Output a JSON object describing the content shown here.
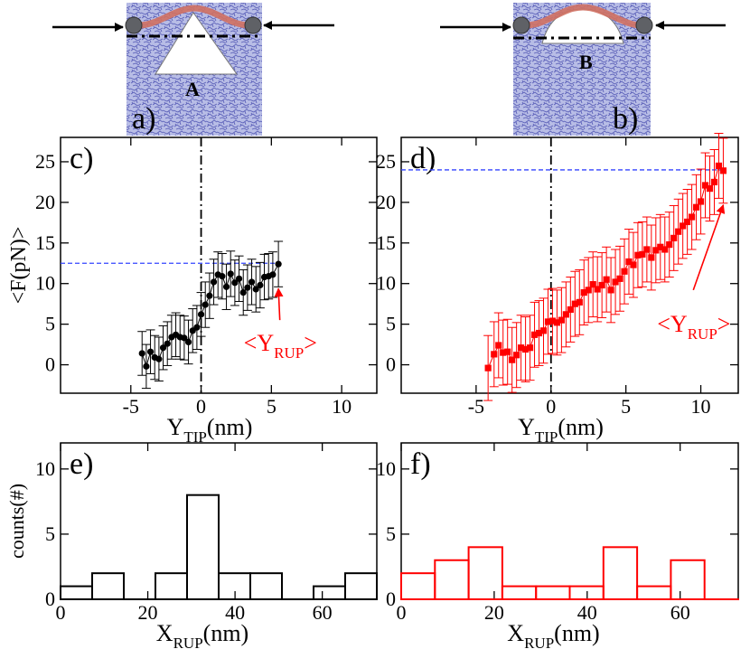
{
  "colors": {
    "black": "#000000",
    "red": "#ff0000",
    "blue": "#0000ff",
    "membrane": "#6a6ec0",
    "filament": "#d07062",
    "bead": "#5f6166"
  },
  "insets": [
    {
      "panel": "a)",
      "obstacle": "A",
      "obstacle_shape": "tall-triangle"
    },
    {
      "panel": "b)",
      "obstacle": "B",
      "obstacle_shape": "flat-dome"
    }
  ],
  "chart_data": [
    {
      "id": "c",
      "type": "scatter",
      "panel_label": "c)",
      "color": "#000000",
      "marker": "circle",
      "xlabel_main": "Y",
      "xlabel_sub": "TIP",
      "xlabel_unit": "(nm)",
      "ylabel": "<F(pN)>",
      "xlim": [
        -10,
        12.5
      ],
      "ylim": [
        -3.5,
        28
      ],
      "xticks": [
        -5,
        0,
        5,
        10
      ],
      "yticks": [
        0,
        5,
        10,
        15,
        20,
        25
      ],
      "ref_vline_x": 0,
      "ref_hline_y": 12.5,
      "annotation": {
        "main": "<Y",
        "sub": "RUP",
        "close": ">",
        "x": 5.6,
        "y": 5.5
      },
      "x": [
        -4.2,
        -3.9,
        -3.6,
        -3.3,
        -3.0,
        -2.7,
        -2.4,
        -2.1,
        -1.8,
        -1.5,
        -1.2,
        -0.9,
        -0.6,
        -0.3,
        0.0,
        0.3,
        0.6,
        0.9,
        1.2,
        1.5,
        1.8,
        2.1,
        2.4,
        2.7,
        3.0,
        3.3,
        3.6,
        3.9,
        4.2,
        4.5,
        4.8,
        5.1,
        5.5
      ],
      "y": [
        1.4,
        -0.2,
        1.6,
        0.9,
        0.7,
        2.1,
        2.6,
        3.4,
        3.7,
        3.4,
        3.3,
        2.8,
        4.2,
        4.6,
        6.2,
        7.4,
        8.5,
        10.2,
        11.1,
        10.9,
        9.6,
        11.2,
        10.1,
        10.6,
        8.9,
        9.5,
        10.2,
        9.3,
        9.8,
        10.8,
        10.9,
        11.1,
        12.4
      ],
      "yerr": [
        2.7,
        2.7,
        2.7,
        2.7,
        2.7,
        2.7,
        2.7,
        2.7,
        2.7,
        2.7,
        2.7,
        2.7,
        2.7,
        2.7,
        2.7,
        2.8,
        2.8,
        2.8,
        2.8,
        2.8,
        2.8,
        2.8,
        2.8,
        2.8,
        2.8,
        2.8,
        2.8,
        2.8,
        2.8,
        2.8,
        2.8,
        2.8,
        2.8
      ]
    },
    {
      "id": "d",
      "type": "scatter",
      "panel_label": "d)",
      "color": "#ff0000",
      "marker": "square",
      "xlabel_main": "Y",
      "xlabel_sub": "TIP",
      "xlabel_unit": "(nm)",
      "ylabel": "",
      "xlim": [
        -10,
        12.5
      ],
      "ylim": [
        -3.5,
        28
      ],
      "xticks": [
        -5,
        0,
        5,
        10
      ],
      "yticks": [
        0,
        5,
        10,
        15,
        20,
        25
      ],
      "ref_vline_x": 0,
      "ref_hline_y": 24,
      "annotation": {
        "main": "<Y",
        "sub": "RUP",
        "close": ">",
        "x": 9.5,
        "y": 9.2
      },
      "x": [
        -4.2,
        -3.8,
        -3.5,
        -3.2,
        -2.9,
        -2.6,
        -2.3,
        -2.0,
        -1.7,
        -1.4,
        -1.1,
        -0.8,
        -0.5,
        -0.2,
        0.1,
        0.4,
        0.7,
        1.0,
        1.3,
        1.6,
        1.9,
        2.2,
        2.5,
        2.8,
        3.1,
        3.4,
        3.7,
        4.0,
        4.3,
        4.6,
        4.9,
        5.2,
        5.5,
        5.8,
        6.1,
        6.4,
        6.7,
        7.0,
        7.3,
        7.6,
        7.9,
        8.2,
        8.5,
        8.8,
        9.1,
        9.4,
        9.7,
        10.0,
        10.3,
        10.6,
        10.9,
        11.2,
        11.5
      ],
      "y": [
        -0.4,
        1.3,
        2.4,
        1.5,
        1.6,
        0.6,
        1.2,
        2.1,
        1.9,
        2.1,
        3.7,
        3.9,
        4.2,
        5.3,
        5.4,
        5.2,
        5.5,
        6.2,
        6.8,
        7.5,
        7.7,
        8.9,
        9.2,
        9.9,
        9.3,
        9.8,
        10.5,
        9.2,
        10.2,
        10.6,
        11.5,
        12.7,
        12.3,
        13.5,
        13.6,
        14.2,
        13.2,
        14.1,
        14.5,
        14.2,
        14.8,
        15.6,
        16.4,
        17.1,
        17.6,
        18.2,
        19.4,
        20.1,
        22.1,
        21.7,
        22.5,
        24.5,
        23.9
      ],
      "yerr": [
        4.0,
        4.0,
        4.0,
        4.0,
        4.0,
        4.0,
        4.0,
        4.0,
        4.0,
        4.0,
        4.0,
        4.0,
        4.0,
        4.0,
        4.0,
        4.0,
        4.0,
        4.0,
        4.0,
        4.0,
        4.0,
        4.0,
        4.0,
        4.0,
        4.0,
        4.0,
        4.0,
        4.0,
        4.0,
        4.0,
        4.0,
        4.0,
        4.0,
        4.0,
        4.0,
        4.0,
        4.0,
        4.0,
        4.0,
        4.0,
        4.0,
        4.0,
        4.0,
        4.0,
        4.0,
        4.0,
        4.0,
        4.0,
        4.0,
        4.0,
        4.0,
        4.0,
        4.0
      ]
    },
    {
      "id": "e",
      "type": "bar",
      "subtype": "histogram",
      "panel_label": "e)",
      "color": "#000000",
      "xlabel_main": "X",
      "xlabel_sub": "RUP",
      "xlabel_unit": "(nm)",
      "ylabel": "counts(#)",
      "xlim": [
        0,
        72.5
      ],
      "ylim": [
        0,
        12
      ],
      "xticks": [
        0,
        20,
        40,
        60
      ],
      "yticks": [
        0,
        5,
        10
      ],
      "bin_width": 7.25,
      "bin_starts": [
        0,
        7.25,
        14.5,
        21.75,
        29,
        36.25,
        43.5,
        50.75,
        58,
        65.25
      ],
      "values": [
        1,
        2,
        0,
        2,
        8,
        2,
        2,
        0,
        1,
        2
      ]
    },
    {
      "id": "f",
      "type": "bar",
      "subtype": "histogram",
      "panel_label": "f)",
      "color": "#ff0000",
      "xlabel_main": "X",
      "xlabel_sub": "RUP",
      "xlabel_unit": "(nm)",
      "ylabel": "",
      "xlim": [
        0,
        72.5
      ],
      "ylim": [
        0,
        12
      ],
      "xticks": [
        0,
        20,
        40,
        60
      ],
      "yticks": [
        0,
        5,
        10
      ],
      "bin_width": 7.25,
      "bin_starts": [
        0,
        7.25,
        14.5,
        21.75,
        29,
        36.25,
        43.5,
        50.75,
        58,
        65.25
      ],
      "values": [
        2,
        3,
        4,
        1,
        1,
        1,
        4,
        1,
        3,
        0
      ]
    }
  ]
}
